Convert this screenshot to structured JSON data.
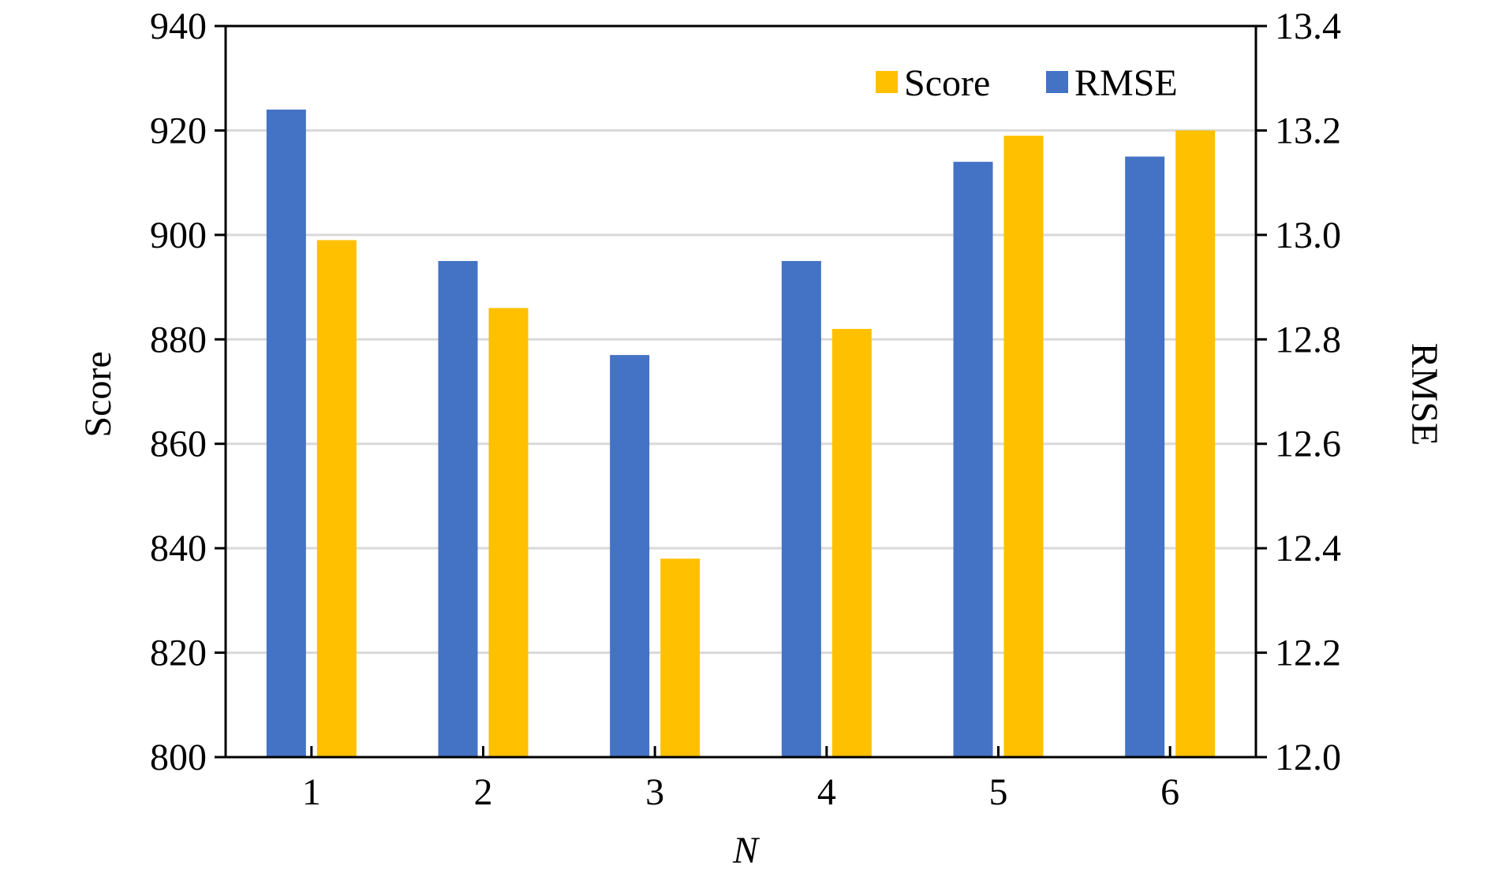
{
  "chart_data": {
    "type": "bar",
    "xlabel": "N",
    "ylabel": "Score",
    "y2label": "RMSE",
    "categories": [
      "1",
      "2",
      "3",
      "4",
      "5",
      "6"
    ],
    "ylim": [
      800,
      940
    ],
    "yticks": [
      "800",
      "820",
      "840",
      "860",
      "880",
      "900",
      "920",
      "940"
    ],
    "y2lim": [
      12.0,
      13.4
    ],
    "y2ticks": [
      "12.0",
      "12.2",
      "12.4",
      "12.6",
      "12.8",
      "13.0",
      "13.2",
      "13.4"
    ],
    "grid": true,
    "legend_position": "top-right",
    "series": [
      {
        "name": "RMSE",
        "axis": "right",
        "color": "#4472C4",
        "values": [
          13.24,
          12.95,
          12.77,
          12.95,
          13.14,
          13.15
        ]
      },
      {
        "name": "Score",
        "axis": "left",
        "color": "#FFC000",
        "values": [
          899,
          886,
          838,
          882,
          919,
          920
        ]
      }
    ],
    "legend": [
      "Score",
      "RMSE"
    ]
  }
}
